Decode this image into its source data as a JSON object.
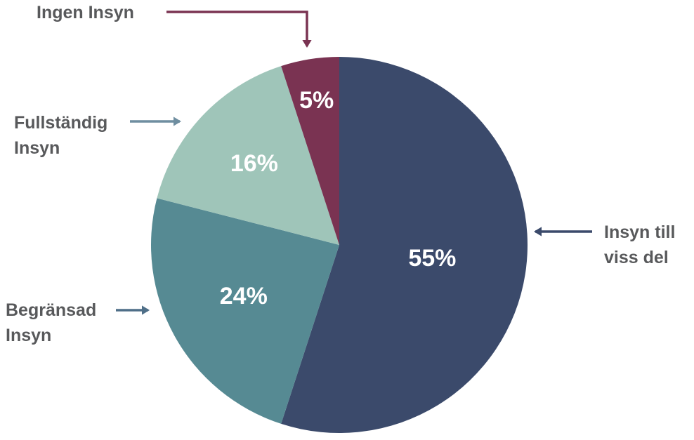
{
  "chart_data": {
    "type": "pie",
    "categories": [
      "Insyn till viss del",
      "Begränsad Insyn",
      "Fullständig Insyn",
      "Ingen Insyn"
    ],
    "values": [
      55,
      24,
      16,
      5
    ],
    "value_labels": [
      "55%",
      "24%",
      "16%",
      "5%"
    ],
    "colors": [
      "#3b4a6b",
      "#568a93",
      "#9fc5b9",
      "#7a3352"
    ]
  }
}
